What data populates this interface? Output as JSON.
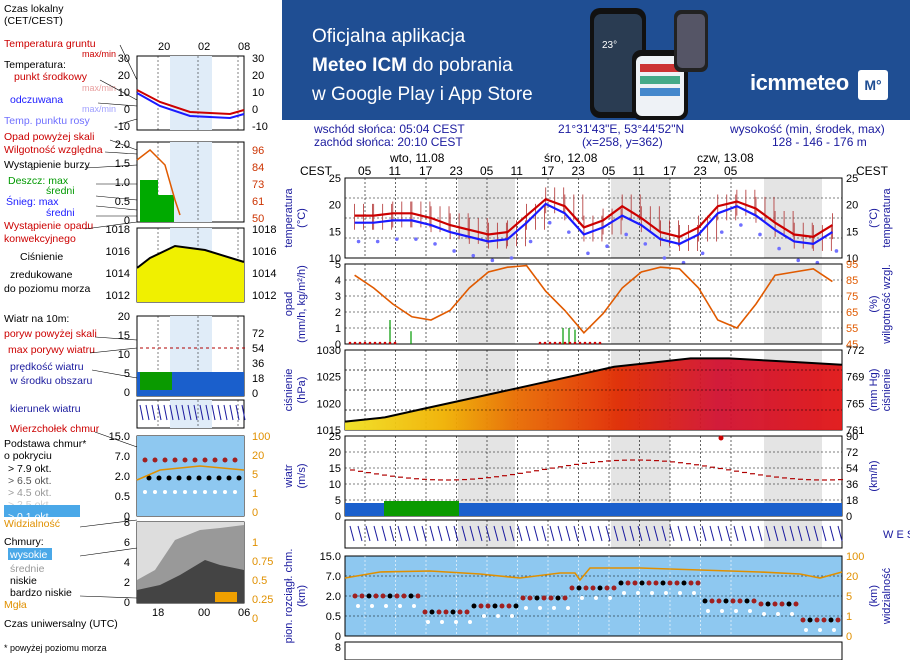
{
  "banner": {
    "line1": "Oficjalna aplikacja",
    "line2a": "Meteo ICM",
    "line2b": " do pobrania",
    "line3": "w Google Play i App Store",
    "logo_text": "icmmeteo",
    "logo_badge": "M°",
    "phone_temp": "23°"
  },
  "info": {
    "sunrise": "wschód słońca: 05:04 CEST",
    "sunset": "zachód słońca: 20:10 CEST",
    "coords": "21°31'43\"E, 53°44'52\"N",
    "grid": "(x=258,  y=362)",
    "elev_label": "wysokość (min, środek, max)",
    "elev_values": "128 - 146 - 176 m"
  },
  "header": {
    "cest_left": "CEST",
    "cest_right": "CEST",
    "days": [
      "wto, 11.08",
      "śro, 12.08",
      "czw, 13.08"
    ],
    "hours": [
      "05",
      "11",
      "17",
      "23",
      "05",
      "11",
      "17",
      "23",
      "05",
      "11",
      "17",
      "23",
      "05"
    ]
  },
  "legend": {
    "title": "Czas lokalny\n(CET/CEST)",
    "top_hours": [
      "20",
      "02",
      "08"
    ],
    "temp_ground": "Temperatura gruntu",
    "temp_ground_mm": "max/min",
    "temperatura": "Temperatura:",
    "punkt": "punkt środkowy",
    "maxmin": "max/min",
    "odczuwana": "odczuwana",
    "maxmin2": "max/min",
    "rosa": "Temp. punktu rosy",
    "temp_ticks_left": [
      "30",
      "20",
      "10",
      "0",
      "-10"
    ],
    "temp_ticks_right": [
      "30",
      "20",
      "10",
      "0",
      "-10"
    ],
    "opad_skali": "Opad powyżej skali",
    "wilg": "Wilgotność względna",
    "burza": "Wystąpienie burzy",
    "deszcz_max": "Deszcz: max",
    "deszcz_sr": "średni",
    "snieg_max": "Śnieg:   max",
    "snieg_sr": "średni",
    "wyst_opadu": "Wystąpienie opadu",
    "konwekcyjnego": "konwekcyjnego",
    "opad_ticks_left": [
      "2.0",
      "1.5",
      "1.0",
      "0.5",
      "0"
    ],
    "opad_ticks_right": [
      "96",
      "84",
      "73",
      "61",
      "50"
    ],
    "cisn_title": "Ciśnienie",
    "cisn_l2": "zredukowane",
    "cisn_l3": "do poziomu morza",
    "cisn_ticks_left": [
      "1018",
      "1016",
      "1014",
      "1012"
    ],
    "cisn_ticks_right": [
      "1018",
      "1016",
      "1014",
      "1012"
    ],
    "wiatr_title": "Wiatr na 10m:",
    "poryw_skali": "poryw powyżej skali",
    "max_porywy": "max porywy wiatru",
    "predkosc": "prędkość wiatru",
    "w_srodku": "w środku obszaru",
    "wiatr_ticks_left": [
      "20",
      "15",
      "10",
      "5",
      "0"
    ],
    "wiatr_ticks_right": [
      "72",
      "54",
      "36",
      "18",
      "0"
    ],
    "kierunek": "kierunek wiatru",
    "wierzcholek": "Wierzchołek chmur",
    "podstawa": "Podstawa chmur*",
    "o_pokryciu": "o pokryciu",
    "okt": [
      "> 7.9 okt.",
      "> 6.5 okt.",
      "> 4.5 okt.",
      "> 2.5 okt.",
      "> 0.1 okt."
    ],
    "widzialnosc": "Widzialność",
    "chm_ticks_left": [
      "15.0",
      "7.0",
      "2.0",
      "0.5",
      "0"
    ],
    "chm_ticks_right": [
      "100",
      "20",
      "5",
      "1",
      "0"
    ],
    "chmury": "Chmury:",
    "wysokie": "wysokie",
    "srednie": "średnie",
    "niskie": "niskie",
    "bardzo_niskie": "bardzo niskie",
    "mgla": "Mgła",
    "cl_ticks_left": [
      "8",
      "6",
      "4",
      "2",
      "0"
    ],
    "cl_ticks_right": [
      "1",
      "0.75",
      "0.5",
      "0.25",
      "0"
    ],
    "bottom_hours": [
      "18",
      "00",
      "06"
    ],
    "utc": "Czas uniwersalny (UTC)",
    "footnote": "* powyżej poziomu morza"
  },
  "panels": {
    "temp": {
      "label_left": "temperatura",
      "unit_left": "(°C)",
      "unit_right": "(°C)",
      "label_right": "temperatura",
      "ticks": [
        "25",
        "20",
        "15",
        "10"
      ]
    },
    "opad": {
      "label_left": "opad",
      "unit_left": "(mm/h, kg/m²/h)",
      "unit_right": "(%)",
      "label_right": "wilgotność wzgl.",
      "ticks_left": [
        "5",
        "4",
        "3",
        "2",
        "1",
        "0"
      ],
      "ticks_right": [
        "95",
        "85",
        "75",
        "65",
        "55",
        "45"
      ]
    },
    "cisn": {
      "label_left": "ciśnienie",
      "unit_left": "(hPa)",
      "unit_right": "(mm Hg)",
      "label_right": "ciśnienie",
      "ticks_left": [
        "1030",
        "1025",
        "1020",
        "1015"
      ],
      "ticks_right": [
        "772",
        "769",
        "765",
        "761"
      ]
    },
    "wiatr": {
      "label_left": "wiatr",
      "unit_left": "(m/s)",
      "unit_right": "(km/h)",
      "ticks_left": [
        "25",
        "20",
        "15",
        "10",
        "5",
        "0"
      ],
      "ticks_right": [
        "90",
        "72",
        "54",
        "36",
        "18",
        "0"
      ]
    },
    "kier": {
      "compass": "W E S N"
    },
    "chmury": {
      "label_left": "pion. rozciągł. chm.",
      "unit_left": "(km)",
      "unit_right": "(km)",
      "label_right": "widzialność",
      "ticks_left": [
        "15.0",
        "7.0",
        "2.0",
        "0.5",
        "0"
      ],
      "ticks_right": [
        "100",
        "20",
        "5",
        "1",
        "0"
      ]
    },
    "bottom": {
      "tick": "8"
    }
  },
  "chart_data": [
    {
      "type": "line",
      "title": "temperatura",
      "ylabel": "(°C)",
      "ylim": [
        8,
        25
      ],
      "x_hours_from_start": [
        0,
        3,
        6,
        9,
        12,
        15,
        18,
        21,
        24,
        27,
        30,
        33,
        36,
        39,
        42,
        45,
        48,
        51,
        54,
        57,
        60,
        63,
        66,
        69,
        72,
        75
      ],
      "series": [
        {
          "name": "punkt środkowy",
          "color": "#cc0000",
          "values": [
            17,
            17,
            17.5,
            17.5,
            16.5,
            15,
            14,
            13,
            13.5,
            17,
            20.5,
            19,
            14.5,
            16,
            19,
            16.5,
            13.5,
            12.5,
            14.5,
            19,
            20,
            18.5,
            15.5,
            13,
            12.5,
            15
          ]
        },
        {
          "name": "odczuwana",
          "color": "#1a1aff",
          "values": [
            15.5,
            15.5,
            16,
            16,
            15,
            13.5,
            12.5,
            11.5,
            12,
            15.5,
            19.5,
            17.5,
            13,
            14.5,
            17,
            15,
            12,
            11,
            13,
            17.5,
            19,
            17,
            14,
            11.5,
            11,
            13.5
          ]
        }
      ]
    },
    {
      "type": "line",
      "title": "wilgotność wzgl.",
      "ylabel": "(%)",
      "ylim": [
        45,
        95
      ],
      "x_hours_from_start": [
        0,
        3,
        6,
        9,
        12,
        15,
        18,
        21,
        24,
        27,
        30,
        33,
        36,
        39,
        42,
        45,
        48,
        51,
        54,
        57,
        60,
        63,
        66,
        69,
        72,
        75
      ],
      "series": [
        {
          "name": "wilgotność",
          "color": "#e05a00",
          "values": [
            88,
            80,
            70,
            62,
            60,
            66,
            80,
            90,
            93,
            94,
            78,
            66,
            52,
            64,
            80,
            90,
            93,
            92,
            80,
            60,
            55,
            70,
            88,
            90,
            92,
            84
          ]
        }
      ]
    },
    {
      "type": "area",
      "title": "ciśnienie",
      "ylabel": "(hPa)",
      "ylim": [
        1013,
        1032
      ],
      "x_hours_from_start": [
        0,
        6,
        12,
        18,
        24,
        30,
        36,
        42,
        48,
        54,
        60,
        66,
        72,
        78
      ],
      "series": [
        {
          "name": "ciśnienie",
          "color": "#000000",
          "values": [
            1015,
            1016,
            1018,
            1020,
            1022,
            1024,
            1026,
            1028,
            1029,
            1030,
            1030,
            1029.5,
            1029,
            1028.5
          ]
        }
      ]
    }
  ],
  "colors": {
    "banner": "#1f4e93",
    "chart_bg": "#ffffff",
    "night_band": "#e4e4e4",
    "axis_label": "#1a1a9e",
    "temp_red": "#cc0000",
    "temp_blue": "#1a1aff",
    "dew": "#7070ff",
    "humid": "#e05a00",
    "precip_green": "#009900",
    "wind_blue": "#1a5fcc",
    "wind_green": "#0a9a00",
    "sky": "#8ec8f0",
    "visib": "#e09000"
  }
}
